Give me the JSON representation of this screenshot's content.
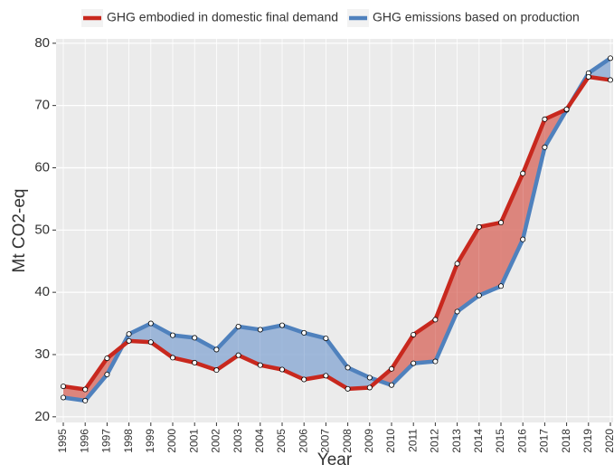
{
  "chart_data": {
    "type": "ribbon-line",
    "x_label": "Year",
    "y_label": "Mt CO2-eq",
    "categories": [
      "1995",
      "1996",
      "1997",
      "1998",
      "1999",
      "2000",
      "2001",
      "2002",
      "2003",
      "2004",
      "2005",
      "2006",
      "2007",
      "2008",
      "2009",
      "2010",
      "2011",
      "2012",
      "2013",
      "2014",
      "2015",
      "2016",
      "2017",
      "2018",
      "2019",
      "2020"
    ],
    "series": [
      {
        "name": "GHG embodied in domestic final demand",
        "color": "#c8281e",
        "fill": "#d9736a",
        "values": [
          24.9,
          24.4,
          29.4,
          32.2,
          32.0,
          29.5,
          28.7,
          27.5,
          29.9,
          28.3,
          27.6,
          26.0,
          26.6,
          24.5,
          24.7,
          27.7,
          33.2,
          35.6,
          44.6,
          50.5,
          51.2,
          59.1,
          67.8,
          69.4,
          74.6,
          74.1
        ]
      },
      {
        "name": "GHG emissions based on production",
        "color": "#4f81bd",
        "fill": "#8fadd5",
        "values": [
          23.1,
          22.6,
          26.8,
          33.3,
          35.0,
          33.1,
          32.7,
          30.8,
          34.5,
          34.0,
          34.7,
          33.5,
          32.6,
          27.9,
          26.3,
          25.1,
          28.6,
          28.9,
          36.9,
          39.5,
          41.0,
          48.5,
          63.3,
          69.3,
          75.2,
          77.6
        ]
      }
    ],
    "ylim": [
      19.1,
      80.7
    ],
    "yticks": [
      20,
      30,
      40,
      50,
      60,
      70,
      80
    ],
    "grid": true,
    "legend": "top"
  }
}
